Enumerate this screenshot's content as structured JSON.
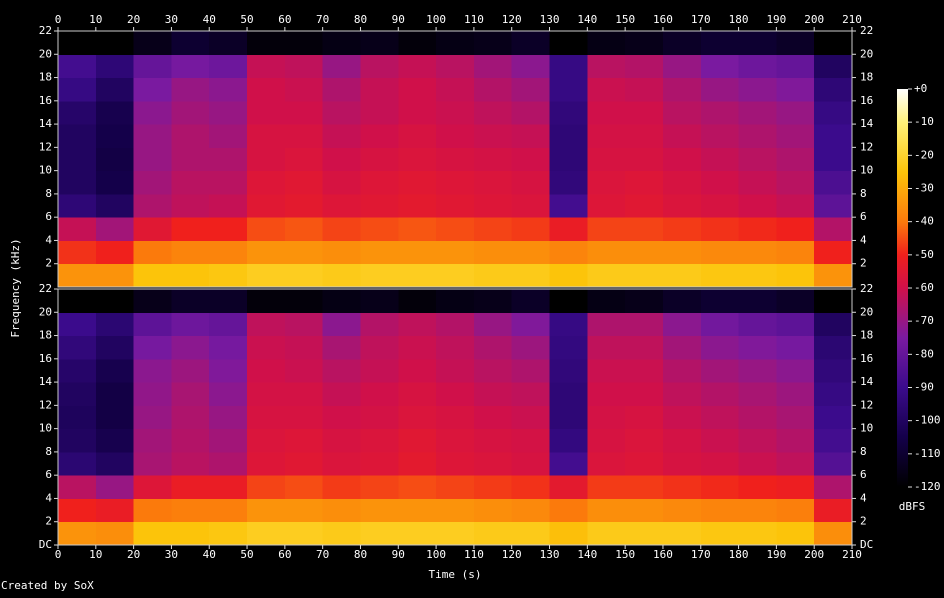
{
  "chart_data": {
    "type": "spectrogram",
    "xlabel": "Time (s)",
    "ylabel": "Frequency (kHz)",
    "colorbar_label": "dBFS",
    "footer": "Created by SoX",
    "xlim": [
      0,
      210
    ],
    "xticks": [
      0,
      10,
      20,
      30,
      40,
      50,
      60,
      70,
      80,
      90,
      100,
      110,
      120,
      130,
      140,
      150,
      160,
      170,
      180,
      190,
      200,
      210
    ],
    "xbins": [
      0,
      10,
      20,
      30,
      40,
      50,
      60,
      70,
      80,
      90,
      100,
      110,
      120,
      130,
      140,
      150,
      160,
      170,
      180,
      190,
      200,
      210
    ],
    "ybins": [
      0,
      2,
      4,
      6,
      8,
      10,
      12,
      14,
      16,
      18,
      20,
      22
    ],
    "colormap": [
      {
        "value": -120,
        "color": "#000000"
      },
      {
        "value": -105,
        "color": "#14004a"
      },
      {
        "value": -90,
        "color": "#3b0b8c"
      },
      {
        "value": -75,
        "color": "#7a1aa0"
      },
      {
        "value": -60,
        "color": "#d0104a"
      },
      {
        "value": -50,
        "color": "#f0201c"
      },
      {
        "value": -40,
        "color": "#fb7a0c"
      },
      {
        "value": -25,
        "color": "#fcc40a"
      },
      {
        "value": -10,
        "color": "#fff27a"
      },
      {
        "value": 0,
        "color": "#ffffff"
      }
    ],
    "clim": [
      -120,
      0
    ],
    "cticks": [
      {
        "value": 0,
        "label": "+0"
      },
      -10,
      -20,
      -30,
      -40,
      -50,
      -60,
      -70,
      -80,
      -90,
      -100,
      -110,
      -120
    ],
    "channels": [
      {
        "ylim": [
          0,
          22
        ],
        "yticks": [
          2,
          4,
          6,
          8,
          10,
          12,
          14,
          16,
          18,
          20,
          22
        ],
        "z": [
          [
            -35,
            -48,
            -62,
            -95,
            -100,
            -100,
            -100,
            -98,
            -92,
            -88,
            -120
          ],
          [
            -35,
            -50,
            -68,
            -100,
            -105,
            -106,
            -105,
            -104,
            -100,
            -95,
            -120
          ],
          [
            -25,
            -40,
            -55,
            -66,
            -68,
            -70,
            -70,
            -72,
            -75,
            -80,
            -115
          ],
          [
            -25,
            -38,
            -50,
            -63,
            -64,
            -66,
            -66,
            -68,
            -70,
            -76,
            -110
          ],
          [
            -24,
            -38,
            -50,
            -62,
            -64,
            -66,
            -68,
            -70,
            -72,
            -78,
            -112
          ],
          [
            -22,
            -35,
            -45,
            -55,
            -56,
            -58,
            -58,
            -60,
            -60,
            -62,
            -118
          ],
          [
            -22,
            -35,
            -44,
            -54,
            -55,
            -57,
            -58,
            -60,
            -61,
            -63,
            -118
          ],
          [
            -23,
            -36,
            -46,
            -56,
            -58,
            -60,
            -62,
            -64,
            -66,
            -70,
            -116
          ],
          [
            -22,
            -35,
            -45,
            -55,
            -56,
            -58,
            -60,
            -62,
            -62,
            -64,
            -115
          ],
          [
            -22,
            -35,
            -44,
            -54,
            -55,
            -57,
            -58,
            -60,
            -60,
            -62,
            -118
          ],
          [
            -22,
            -35,
            -45,
            -55,
            -56,
            -58,
            -60,
            -61,
            -62,
            -64,
            -116
          ],
          [
            -23,
            -36,
            -46,
            -56,
            -57,
            -59,
            -61,
            -63,
            -65,
            -68,
            -115
          ],
          [
            -23,
            -36,
            -47,
            -57,
            -58,
            -60,
            -62,
            -65,
            -68,
            -72,
            -112
          ],
          [
            -25,
            -38,
            -52,
            -88,
            -94,
            -95,
            -95,
            -94,
            -92,
            -92,
            -120
          ],
          [
            -23,
            -36,
            -46,
            -56,
            -57,
            -58,
            -59,
            -60,
            -61,
            -64,
            -116
          ],
          [
            -23,
            -36,
            -46,
            -55,
            -56,
            -58,
            -59,
            -60,
            -62,
            -65,
            -115
          ],
          [
            -23,
            -36,
            -47,
            -57,
            -58,
            -60,
            -62,
            -64,
            -66,
            -70,
            -112
          ],
          [
            -24,
            -37,
            -48,
            -58,
            -60,
            -62,
            -64,
            -66,
            -70,
            -75,
            -110
          ],
          [
            -24,
            -37,
            -49,
            -60,
            -62,
            -64,
            -66,
            -68,
            -72,
            -78,
            -110
          ],
          [
            -25,
            -38,
            -50,
            -62,
            -64,
            -66,
            -68,
            -70,
            -74,
            -80,
            -112
          ],
          [
            -35,
            -50,
            -65,
            -82,
            -86,
            -90,
            -90,
            -92,
            -95,
            -100,
            -120
          ]
        ]
      },
      {
        "ylim": [
          0,
          22
        ],
        "yticks": [
          {
            "value": 0,
            "label": "DC"
          },
          2,
          4,
          6,
          8,
          10,
          12,
          14,
          16,
          18,
          20,
          22
        ],
        "z": [
          [
            -35,
            -50,
            -64,
            -96,
            -100,
            -101,
            -100,
            -98,
            -94,
            -90,
            -120
          ],
          [
            -36,
            -52,
            -70,
            -100,
            -104,
            -106,
            -106,
            -104,
            -100,
            -96,
            -120
          ],
          [
            -25,
            -40,
            -56,
            -67,
            -68,
            -70,
            -71,
            -72,
            -76,
            -82,
            -115
          ],
          [
            -25,
            -39,
            -52,
            -64,
            -65,
            -66,
            -67,
            -69,
            -72,
            -78,
            -112
          ],
          [
            -24,
            -39,
            -52,
            -66,
            -68,
            -70,
            -72,
            -74,
            -76,
            -80,
            -112
          ],
          [
            -22,
            -35,
            -46,
            -56,
            -57,
            -58,
            -59,
            -60,
            -61,
            -63,
            -118
          ],
          [
            -22,
            -35,
            -45,
            -55,
            -56,
            -58,
            -59,
            -61,
            -62,
            -64,
            -118
          ],
          [
            -23,
            -36,
            -47,
            -57,
            -58,
            -60,
            -62,
            -64,
            -67,
            -72,
            -116
          ],
          [
            -22,
            -35,
            -46,
            -56,
            -57,
            -59,
            -60,
            -62,
            -63,
            -65,
            -115
          ],
          [
            -22,
            -35,
            -45,
            -54,
            -55,
            -57,
            -58,
            -60,
            -61,
            -63,
            -118
          ],
          [
            -22,
            -35,
            -46,
            -56,
            -57,
            -58,
            -60,
            -62,
            -63,
            -65,
            -116
          ],
          [
            -23,
            -36,
            -47,
            -57,
            -58,
            -60,
            -62,
            -64,
            -66,
            -70,
            -115
          ],
          [
            -23,
            -37,
            -48,
            -58,
            -59,
            -61,
            -63,
            -66,
            -69,
            -74,
            -112
          ],
          [
            -26,
            -40,
            -54,
            -88,
            -93,
            -95,
            -95,
            -94,
            -93,
            -92,
            -120
          ],
          [
            -23,
            -36,
            -47,
            -57,
            -58,
            -59,
            -60,
            -61,
            -63,
            -66,
            -116
          ],
          [
            -23,
            -36,
            -47,
            -56,
            -57,
            -58,
            -60,
            -61,
            -63,
            -66,
            -115
          ],
          [
            -23,
            -37,
            -48,
            -58,
            -59,
            -61,
            -63,
            -65,
            -68,
            -72,
            -112
          ],
          [
            -24,
            -38,
            -49,
            -59,
            -61,
            -63,
            -65,
            -68,
            -72,
            -77,
            -110
          ],
          [
            -24,
            -38,
            -50,
            -61,
            -63,
            -65,
            -67,
            -70,
            -74,
            -80,
            -110
          ],
          [
            -25,
            -39,
            -51,
            -63,
            -65,
            -67,
            -69,
            -72,
            -76,
            -82,
            -112
          ],
          [
            -36,
            -52,
            -66,
            -84,
            -88,
            -90,
            -92,
            -94,
            -96,
            -100,
            -120
          ]
        ]
      }
    ]
  }
}
